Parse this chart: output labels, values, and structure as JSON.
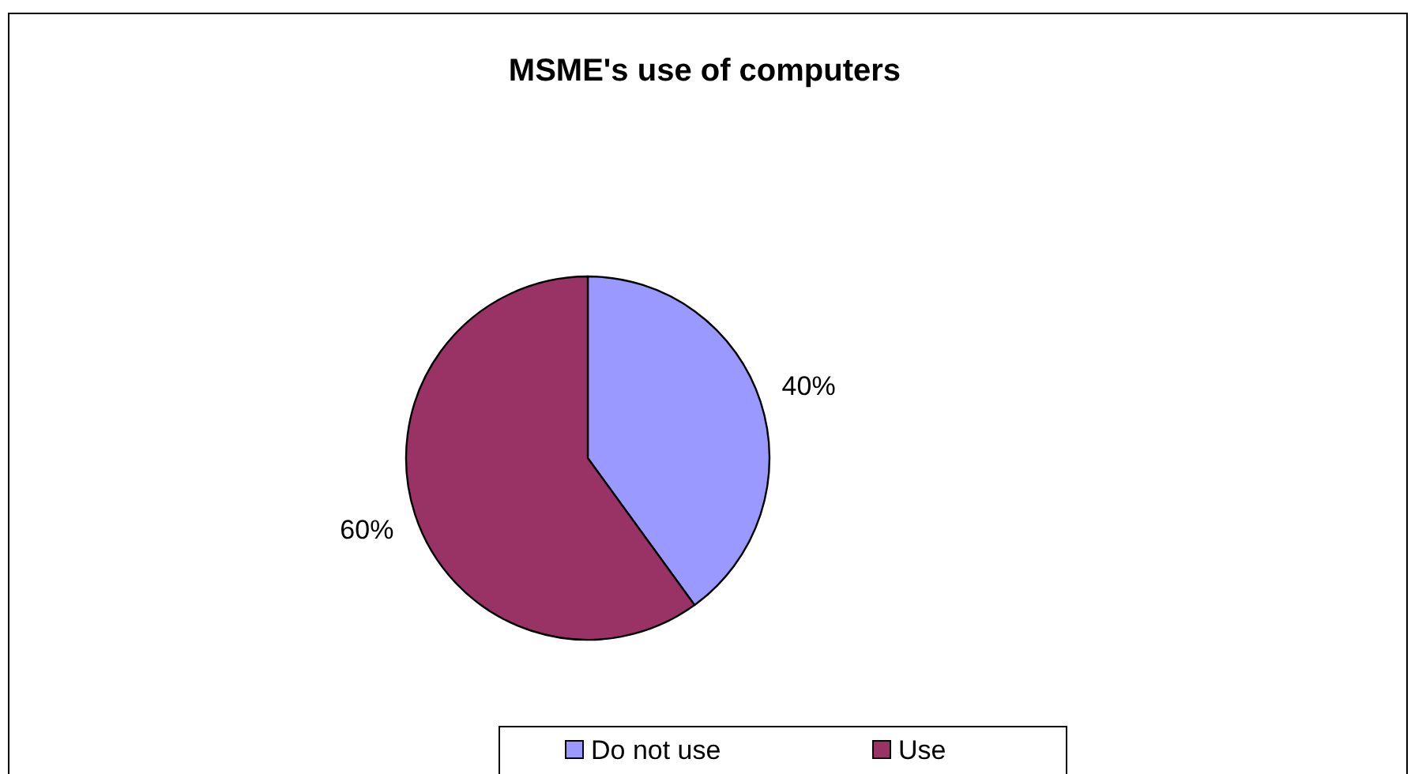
{
  "chart_data": {
    "type": "pie",
    "title": "MSME's use of computers",
    "categories": [
      "Do not use",
      "Use"
    ],
    "values": [
      40,
      60
    ],
    "colors": [
      "#9999ff",
      "#993366"
    ],
    "value_labels": [
      "40%",
      "60%"
    ],
    "legend": "bottom"
  }
}
